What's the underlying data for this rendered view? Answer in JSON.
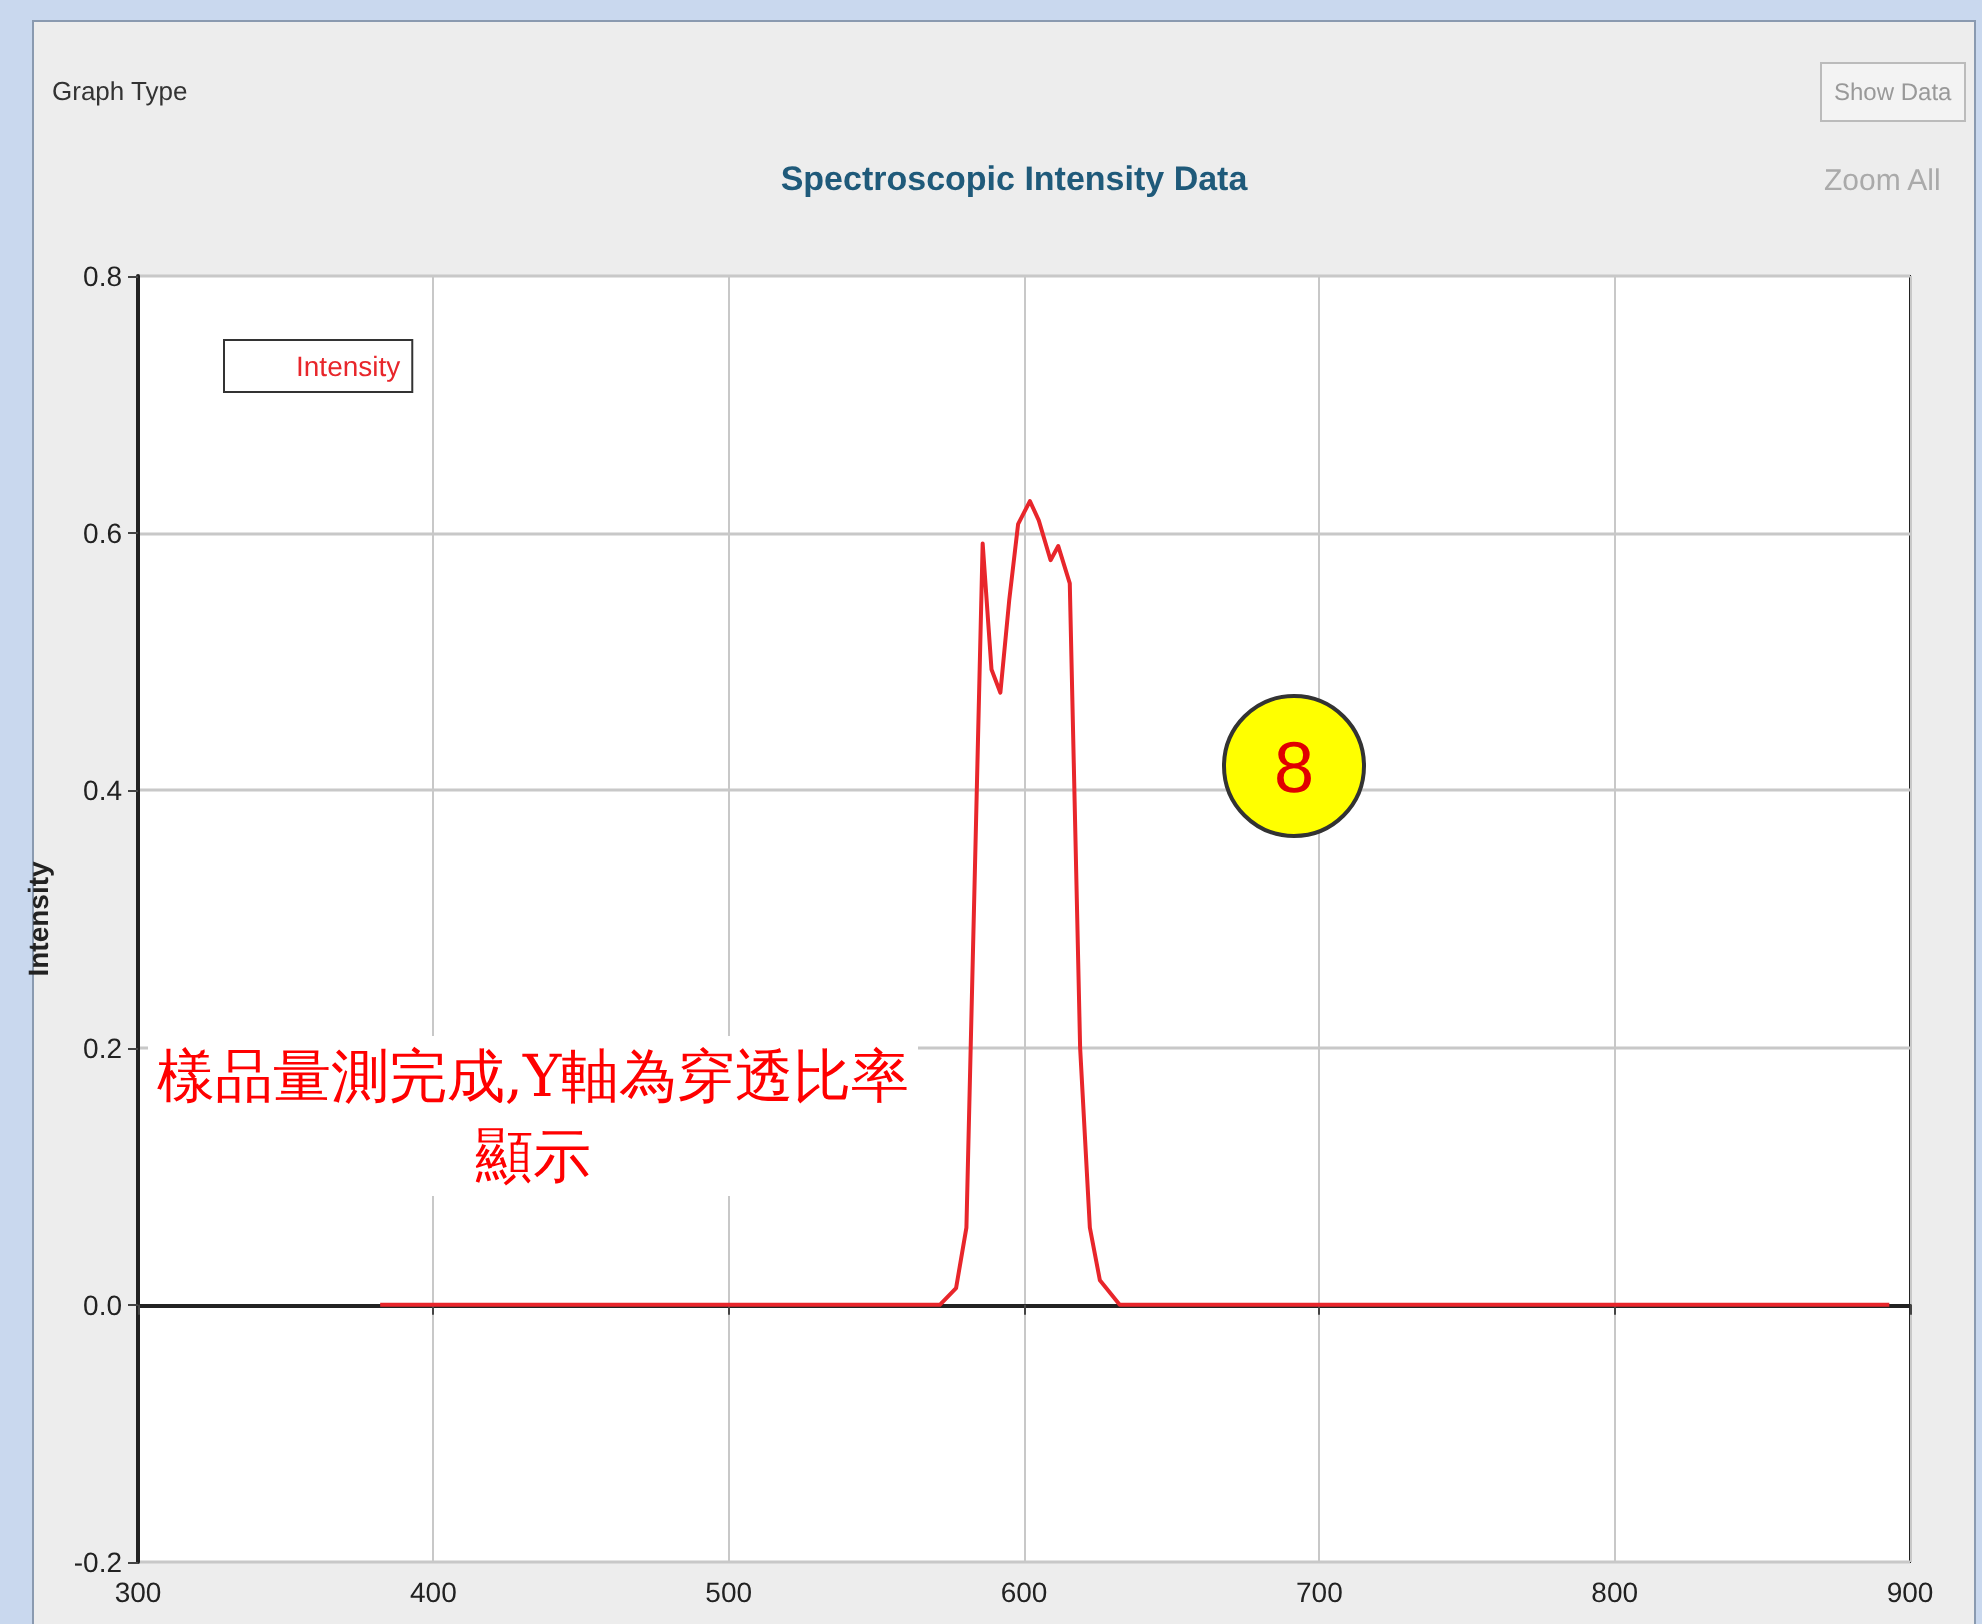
{
  "chart_data": {
    "type": "line",
    "title": "Spectroscopic Intensity Data",
    "ylabel": "Intensity",
    "annotations": [
      "Graph Type",
      "Show Data",
      "Zoom All",
      "樣品量測完成,Y軸為穿透比率顯示",
      "8"
    ],
    "x": [
      382,
      560,
      571.5,
      577,
      580.5,
      586,
      589,
      592,
      595,
      598,
      602,
      605,
      609,
      611.6,
      615.5,
      619,
      622.3,
      625.7,
      632.4,
      700,
      893
    ],
    "series": [
      {
        "name": "Intensity",
        "color": "#e8262b",
        "values": [
          0,
          0,
          0,
          0.013,
          0.06,
          0.592,
          0.494,
          0.476,
          0.548,
          0.607,
          0.625,
          0.61,
          0.579,
          0.59,
          0.561,
          0.2,
          0.06,
          0.019,
          0,
          0,
          0
        ]
      }
    ],
    "xlim": [
      300,
      900
    ],
    "xticks": [
      300,
      400,
      500,
      600,
      700,
      800,
      900
    ],
    "ylim": [
      -0.2,
      0.8
    ],
    "yticks": [
      {
        "value": -0.2,
        "label": "-0.2"
      },
      {
        "value": 0,
        "label": "0.0"
      },
      {
        "value": 0.2,
        "label": "0.2"
      },
      {
        "value": 0.4,
        "label": "0.4"
      },
      {
        "value": 0.6,
        "label": "0.6"
      },
      {
        "value": 0.8,
        "label": "0.8"
      }
    ],
    "grid": true,
    "legend": "top left",
    "marker": "none",
    "line_style": "solid"
  }
}
